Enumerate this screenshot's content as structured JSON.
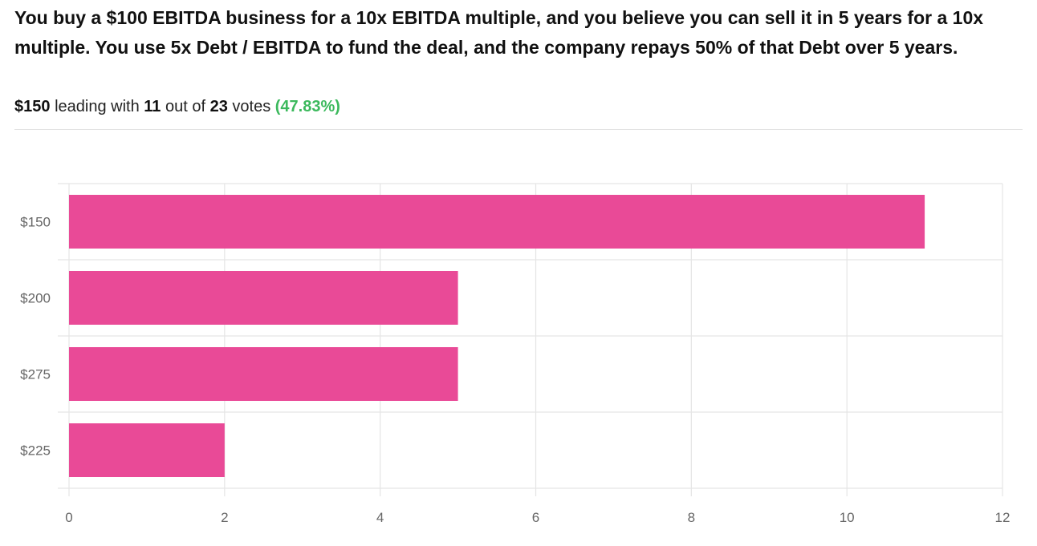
{
  "question": "You buy a $100 EBITDA business for a 10x EBITDA multiple, and you believe you can sell it in 5 years for a 10x multiple. You use 5x Debt / EBITDA to fund the deal, and the company repays 50% of that Debt over 5 years.",
  "summary": {
    "leader": "$150",
    "leading_text": "leading with",
    "leader_votes": "11",
    "out_of_text": "out of",
    "total_votes": "23",
    "votes_text": "votes",
    "percent": "(47.83%)"
  },
  "colors": {
    "bar": "#e94a97",
    "grid": "#e5e5e5",
    "percent": "#3cb95d"
  },
  "chart_data": {
    "type": "bar",
    "orientation": "horizontal",
    "categories": [
      "$150",
      "$200",
      "$275",
      "$225"
    ],
    "values": [
      11,
      5,
      5,
      2
    ],
    "xlim": [
      0,
      12
    ],
    "xticks": [
      0,
      2,
      4,
      6,
      8,
      10,
      12
    ],
    "title": "",
    "xlabel": "",
    "ylabel": "",
    "grid": true
  }
}
